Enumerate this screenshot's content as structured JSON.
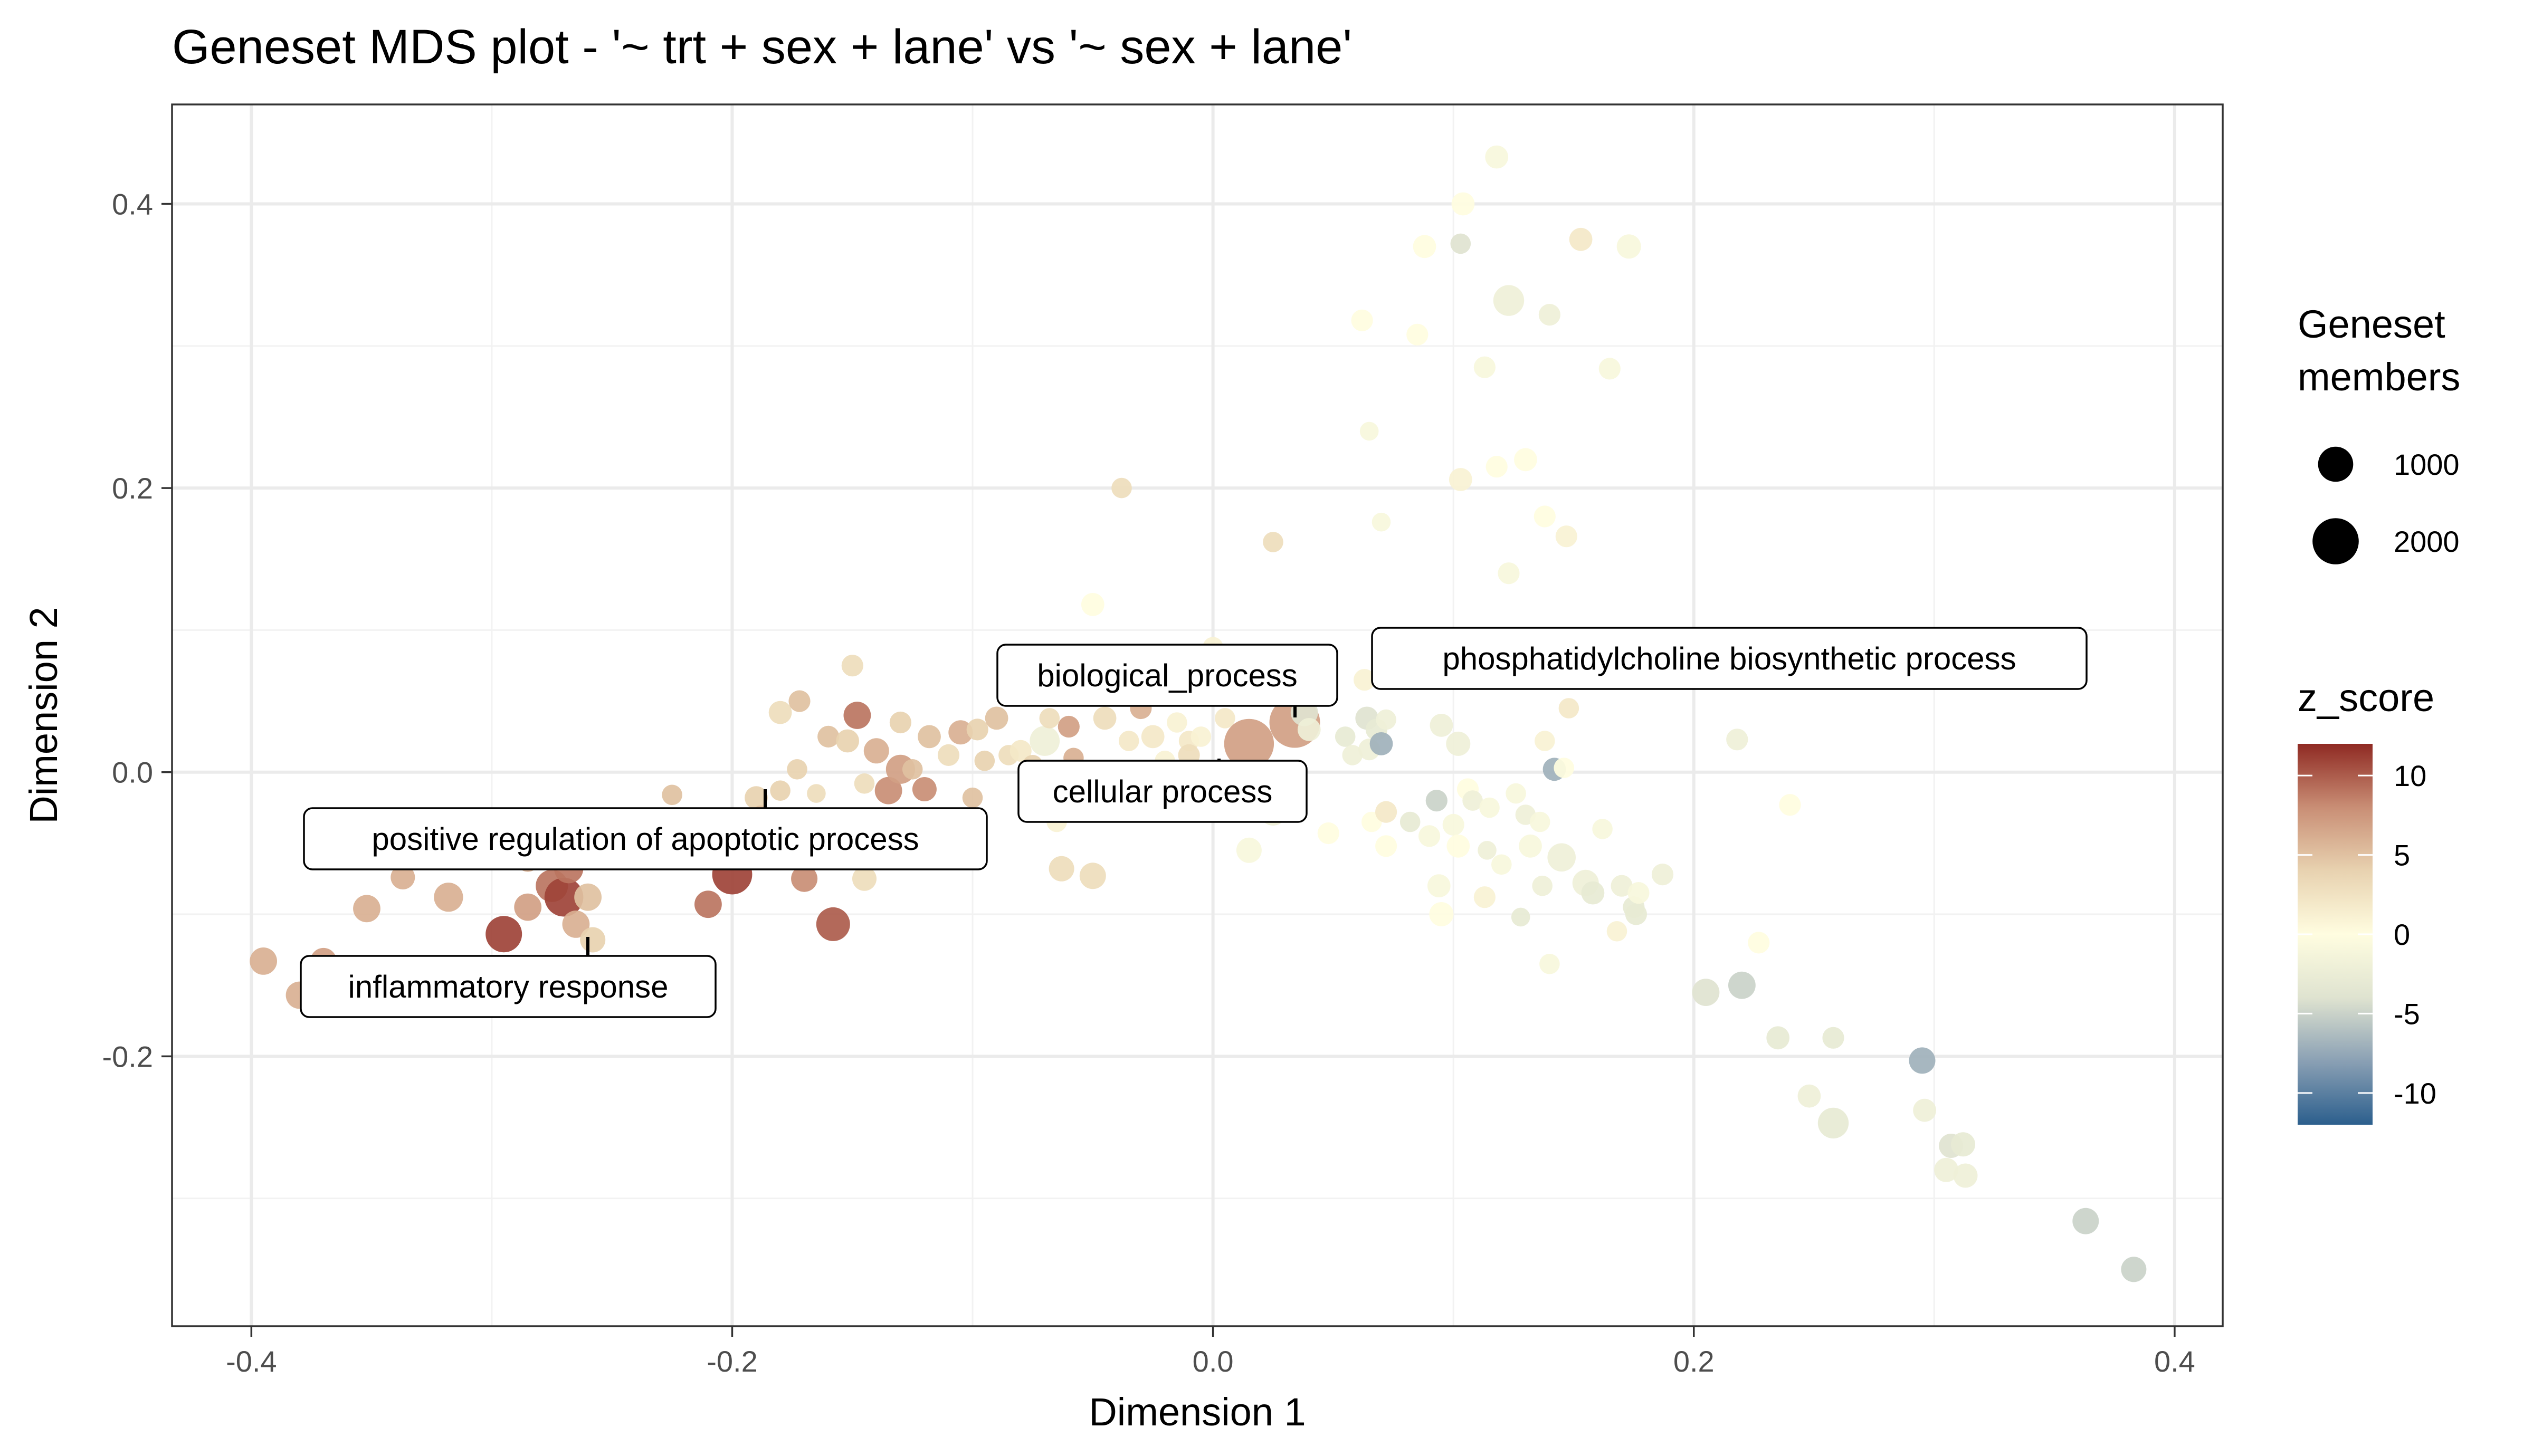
{
  "chart_data": {
    "type": "scatter",
    "title": "Geneset MDS plot - '~ trt + sex + lane' vs '~ sex + lane'",
    "xlabel": "Dimension 1",
    "ylabel": "Dimension 2",
    "xlim": [
      -0.433,
      0.42
    ],
    "ylim": [
      -0.39,
      0.47
    ],
    "xticks": [
      -0.4,
      -0.2,
      0.0,
      0.2,
      0.4
    ],
    "xtick_labels": [
      "-0.4",
      "-0.2",
      "0.0",
      "0.2",
      "0.4"
    ],
    "yticks": [
      -0.2,
      0.0,
      0.2,
      0.4
    ],
    "ytick_labels": [
      "-0.2",
      "0.0",
      "0.2",
      "0.4"
    ],
    "grid": true,
    "legend_position": "right",
    "size_legend": {
      "title": [
        "Geneset",
        "members"
      ],
      "entries": [
        {
          "label": "1000",
          "value": 1000
        },
        {
          "label": "2000",
          "value": 2000
        }
      ]
    },
    "color_legend": {
      "title": "z_score",
      "range": [
        -12,
        12
      ],
      "ticks": [
        10,
        5,
        0,
        -5,
        -10
      ],
      "tick_labels": [
        "10",
        "5",
        "0",
        "-5",
        "-10"
      ],
      "colors": [
        "#2c5f8d",
        "#8aa0b4",
        "#dfe3d0",
        "#fffde0",
        "#e8d2b0",
        "#c98e75",
        "#8f2a23"
      ]
    },
    "annotations": [
      {
        "label": "biological_process",
        "x": 0.034,
        "y": 0.035
      },
      {
        "label": "phosphatidylcholine biosynthetic process",
        "x": 0.148,
        "y": 0.045
      },
      {
        "label": "cellular process",
        "x": 0.015,
        "y": 0.02
      },
      {
        "label": "positive regulation of apoptotic process",
        "x": -0.2,
        "y": -0.072
      },
      {
        "label": "inflammatory response",
        "x": -0.27,
        "y": -0.088
      }
    ],
    "points": [
      {
        "x": -0.395,
        "y": -0.133,
        "members": 500,
        "z": 6
      },
      {
        "x": -0.38,
        "y": -0.157,
        "members": 500,
        "z": 6
      },
      {
        "x": -0.37,
        "y": -0.133,
        "members": 450,
        "z": 7
      },
      {
        "x": -0.352,
        "y": -0.096,
        "members": 500,
        "z": 6
      },
      {
        "x": -0.337,
        "y": -0.074,
        "members": 350,
        "z": 6
      },
      {
        "x": -0.318,
        "y": -0.088,
        "members": 600,
        "z": 6
      },
      {
        "x": -0.295,
        "y": -0.114,
        "members": 1100,
        "z": 11
      },
      {
        "x": -0.295,
        "y": -0.048,
        "members": 350,
        "z": 7
      },
      {
        "x": -0.285,
        "y": -0.095,
        "members": 500,
        "z": 7
      },
      {
        "x": -0.285,
        "y": -0.062,
        "members": 300,
        "z": 6
      },
      {
        "x": -0.275,
        "y": -0.08,
        "members": 800,
        "z": 9
      },
      {
        "x": -0.27,
        "y": -0.088,
        "members": 1300,
        "z": 11
      },
      {
        "x": -0.268,
        "y": -0.068,
        "members": 600,
        "z": 9
      },
      {
        "x": -0.265,
        "y": -0.107,
        "members": 500,
        "z": 6
      },
      {
        "x": -0.26,
        "y": -0.088,
        "members": 500,
        "z": 5
      },
      {
        "x": -0.258,
        "y": -0.118,
        "members": 400,
        "z": 4
      },
      {
        "x": -0.25,
        "y": -0.058,
        "members": 300,
        "z": 6
      },
      {
        "x": -0.225,
        "y": -0.016,
        "members": 200,
        "z": 5
      },
      {
        "x": -0.21,
        "y": -0.093,
        "members": 500,
        "z": 9
      },
      {
        "x": -0.2,
        "y": -0.072,
        "members": 1400,
        "z": 11
      },
      {
        "x": -0.19,
        "y": -0.018,
        "members": 300,
        "z": 4
      },
      {
        "x": -0.188,
        "y": -0.03,
        "members": 150,
        "z": 5
      },
      {
        "x": -0.18,
        "y": -0.013,
        "members": 200,
        "z": 4
      },
      {
        "x": -0.18,
        "y": 0.042,
        "members": 300,
        "z": 3
      },
      {
        "x": -0.172,
        "y": 0.05,
        "members": 250,
        "z": 5
      },
      {
        "x": -0.17,
        "y": -0.075,
        "members": 450,
        "z": 8
      },
      {
        "x": -0.173,
        "y": 0.002,
        "members": 200,
        "z": 4
      },
      {
        "x": -0.165,
        "y": -0.015,
        "members": 150,
        "z": 3
      },
      {
        "x": -0.16,
        "y": 0.025,
        "members": 250,
        "z": 5
      },
      {
        "x": -0.158,
        "y": -0.107,
        "members": 900,
        "z": 10
      },
      {
        "x": -0.152,
        "y": 0.022,
        "members": 300,
        "z": 4
      },
      {
        "x": -0.15,
        "y": 0.075,
        "members": 250,
        "z": 3
      },
      {
        "x": -0.148,
        "y": 0.04,
        "members": 500,
        "z": 9
      },
      {
        "x": -0.145,
        "y": -0.008,
        "members": 200,
        "z": 3
      },
      {
        "x": -0.145,
        "y": -0.075,
        "members": 350,
        "z": 3
      },
      {
        "x": -0.14,
        "y": 0.015,
        "members": 400,
        "z": 6
      },
      {
        "x": -0.135,
        "y": -0.013,
        "members": 500,
        "z": 8
      },
      {
        "x": -0.13,
        "y": 0.035,
        "members": 250,
        "z": 4
      },
      {
        "x": -0.13,
        "y": 0.002,
        "members": 600,
        "z": 7
      },
      {
        "x": -0.125,
        "y": 0.002,
        "members": 200,
        "z": 5
      },
      {
        "x": -0.12,
        "y": -0.012,
        "members": 350,
        "z": 8
      },
      {
        "x": -0.118,
        "y": 0.025,
        "members": 300,
        "z": 5
      },
      {
        "x": -0.11,
        "y": 0.012,
        "members": 250,
        "z": 3
      },
      {
        "x": -0.11,
        "y": -0.04,
        "members": 200,
        "z": 4
      },
      {
        "x": -0.105,
        "y": 0.028,
        "members": 350,
        "z": 6
      },
      {
        "x": -0.1,
        "y": -0.018,
        "members": 200,
        "z": 5
      },
      {
        "x": -0.098,
        "y": 0.03,
        "members": 250,
        "z": 4
      },
      {
        "x": -0.095,
        "y": 0.008,
        "members": 200,
        "z": 4
      },
      {
        "x": -0.09,
        "y": 0.038,
        "members": 300,
        "z": 5
      },
      {
        "x": -0.085,
        "y": 0.012,
        "members": 200,
        "z": 3
      },
      {
        "x": -0.08,
        "y": 0.015,
        "members": 250,
        "z": 2
      },
      {
        "x": -0.075,
        "y": 0.005,
        "members": 200,
        "z": 4
      },
      {
        "x": -0.07,
        "y": 0.022,
        "members": 650,
        "z": -2
      },
      {
        "x": -0.068,
        "y": 0.038,
        "members": 200,
        "z": 3
      },
      {
        "x": -0.065,
        "y": -0.035,
        "members": 200,
        "z": 1
      },
      {
        "x": -0.063,
        "y": -0.068,
        "members": 400,
        "z": 3
      },
      {
        "x": -0.06,
        "y": 0.032,
        "members": 250,
        "z": 7
      },
      {
        "x": -0.058,
        "y": 0.01,
        "members": 200,
        "z": 6
      },
      {
        "x": -0.05,
        "y": 0.118,
        "members": 300,
        "z": 0
      },
      {
        "x": -0.05,
        "y": -0.073,
        "members": 450,
        "z": 3
      },
      {
        "x": -0.045,
        "y": 0.038,
        "members": 300,
        "z": 3
      },
      {
        "x": -0.038,
        "y": 0.2,
        "members": 200,
        "z": 3
      },
      {
        "x": -0.035,
        "y": 0.022,
        "members": 200,
        "z": 2
      },
      {
        "x": -0.03,
        "y": 0.045,
        "members": 250,
        "z": 6
      },
      {
        "x": -0.025,
        "y": 0.025,
        "members": 300,
        "z": 2
      },
      {
        "x": -0.02,
        "y": 0.008,
        "members": 200,
        "z": 1
      },
      {
        "x": -0.015,
        "y": 0.035,
        "members": 200,
        "z": 1
      },
      {
        "x": -0.01,
        "y": 0.022,
        "members": 200,
        "z": 2
      },
      {
        "x": -0.01,
        "y": 0.012,
        "members": 250,
        "z": 3
      },
      {
        "x": -0.005,
        "y": 0.025,
        "members": 200,
        "z": 1
      },
      {
        "x": 0.0,
        "y": 0.088,
        "members": 200,
        "z": 1
      },
      {
        "x": 0.005,
        "y": 0.038,
        "members": 200,
        "z": 2
      },
      {
        "x": 0.015,
        "y": -0.055,
        "members": 400,
        "z": -1
      },
      {
        "x": 0.015,
        "y": 0.02,
        "members": 2400,
        "z": 7
      },
      {
        "x": 0.025,
        "y": 0.162,
        "members": 200,
        "z": 3
      },
      {
        "x": 0.025,
        "y": -0.028,
        "members": 500,
        "z": -2
      },
      {
        "x": 0.034,
        "y": 0.035,
        "members": 2500,
        "z": 7
      },
      {
        "x": 0.038,
        "y": 0.042,
        "members": 500,
        "z": -4
      },
      {
        "x": 0.04,
        "y": 0.03,
        "members": 300,
        "z": -2
      },
      {
        "x": 0.048,
        "y": -0.043,
        "members": 250,
        "z": 0
      },
      {
        "x": 0.055,
        "y": 0.025,
        "members": 200,
        "z": -3
      },
      {
        "x": 0.058,
        "y": 0.012,
        "members": 200,
        "z": -2
      },
      {
        "x": 0.062,
        "y": 0.318,
        "members": 250,
        "z": 0
      },
      {
        "x": 0.063,
        "y": 0.065,
        "members": 250,
        "z": 1
      },
      {
        "x": 0.064,
        "y": 0.038,
        "members": 300,
        "z": -4
      },
      {
        "x": 0.065,
        "y": 0.016,
        "members": 250,
        "z": -2
      },
      {
        "x": 0.065,
        "y": 0.24,
        "members": 150,
        "z": -1
      },
      {
        "x": 0.066,
        "y": -0.035,
        "members": 200,
        "z": 0
      },
      {
        "x": 0.068,
        "y": 0.03,
        "members": 250,
        "z": -3
      },
      {
        "x": 0.07,
        "y": 0.176,
        "members": 150,
        "z": -1
      },
      {
        "x": 0.07,
        "y": 0.02,
        "members": 300,
        "z": -7
      },
      {
        "x": 0.072,
        "y": 0.037,
        "members": 200,
        "z": -2
      },
      {
        "x": 0.072,
        "y": -0.028,
        "members": 250,
        "z": 2
      },
      {
        "x": 0.072,
        "y": -0.052,
        "members": 250,
        "z": 0
      },
      {
        "x": 0.082,
        "y": -0.035,
        "members": 200,
        "z": -3
      },
      {
        "x": 0.085,
        "y": 0.308,
        "members": 250,
        "z": 0
      },
      {
        "x": 0.088,
        "y": 0.37,
        "members": 300,
        "z": 0
      },
      {
        "x": 0.09,
        "y": -0.045,
        "members": 250,
        "z": -1
      },
      {
        "x": 0.093,
        "y": -0.02,
        "members": 250,
        "z": -5
      },
      {
        "x": 0.094,
        "y": -0.08,
        "members": 300,
        "z": -1
      },
      {
        "x": 0.095,
        "y": -0.1,
        "members": 350,
        "z": 0
      },
      {
        "x": 0.095,
        "y": 0.033,
        "members": 300,
        "z": -2
      },
      {
        "x": 0.1,
        "y": -0.037,
        "members": 250,
        "z": -1
      },
      {
        "x": 0.102,
        "y": 0.02,
        "members": 350,
        "z": -2
      },
      {
        "x": 0.102,
        "y": -0.052,
        "members": 300,
        "z": 0
      },
      {
        "x": 0.103,
        "y": 0.372,
        "members": 200,
        "z": -4
      },
      {
        "x": 0.103,
        "y": 0.206,
        "members": 300,
        "z": 1
      },
      {
        "x": 0.104,
        "y": 0.4,
        "members": 300,
        "z": 0
      },
      {
        "x": 0.106,
        "y": -0.012,
        "members": 250,
        "z": 0
      },
      {
        "x": 0.108,
        "y": -0.02,
        "members": 200,
        "z": -2
      },
      {
        "x": 0.113,
        "y": 0.285,
        "members": 250,
        "z": -1
      },
      {
        "x": 0.113,
        "y": -0.088,
        "members": 250,
        "z": 1
      },
      {
        "x": 0.114,
        "y": -0.055,
        "members": 150,
        "z": -2
      },
      {
        "x": 0.115,
        "y": -0.025,
        "members": 200,
        "z": -1
      },
      {
        "x": 0.118,
        "y": 0.433,
        "members": 300,
        "z": -1
      },
      {
        "x": 0.118,
        "y": 0.215,
        "members": 250,
        "z": 0
      },
      {
        "x": 0.12,
        "y": -0.065,
        "members": 200,
        "z": -1
      },
      {
        "x": 0.123,
        "y": 0.14,
        "members": 250,
        "z": -1
      },
      {
        "x": 0.123,
        "y": 0.332,
        "members": 700,
        "z": -2
      },
      {
        "x": 0.126,
        "y": -0.015,
        "members": 200,
        "z": -1
      },
      {
        "x": 0.128,
        "y": -0.102,
        "members": 150,
        "z": -3
      },
      {
        "x": 0.13,
        "y": -0.03,
        "members": 200,
        "z": -2
      },
      {
        "x": 0.13,
        "y": 0.22,
        "members": 300,
        "z": 0
      },
      {
        "x": 0.132,
        "y": -0.052,
        "members": 300,
        "z": -1
      },
      {
        "x": 0.136,
        "y": -0.035,
        "members": 200,
        "z": -1
      },
      {
        "x": 0.137,
        "y": -0.08,
        "members": 200,
        "z": -2
      },
      {
        "x": 0.138,
        "y": 0.18,
        "members": 250,
        "z": 0
      },
      {
        "x": 0.138,
        "y": 0.022,
        "members": 200,
        "z": 1
      },
      {
        "x": 0.14,
        "y": 0.322,
        "members": 250,
        "z": -2
      },
      {
        "x": 0.14,
        "y": -0.135,
        "members": 200,
        "z": -1
      },
      {
        "x": 0.142,
        "y": 0.002,
        "members": 300,
        "z": -7
      },
      {
        "x": 0.145,
        "y": -0.06,
        "members": 550,
        "z": -2
      },
      {
        "x": 0.146,
        "y": 0.003,
        "members": 200,
        "z": 0
      },
      {
        "x": 0.147,
        "y": 0.166,
        "members": 250,
        "z": 1
      },
      {
        "x": 0.148,
        "y": 0.045,
        "members": 200,
        "z": 2
      },
      {
        "x": 0.153,
        "y": 0.375,
        "members": 300,
        "z": 2
      },
      {
        "x": 0.155,
        "y": -0.078,
        "members": 450,
        "z": -2
      },
      {
        "x": 0.158,
        "y": -0.085,
        "members": 300,
        "z": -3
      },
      {
        "x": 0.162,
        "y": -0.04,
        "members": 200,
        "z": -1
      },
      {
        "x": 0.165,
        "y": 0.284,
        "members": 250,
        "z": -1
      },
      {
        "x": 0.168,
        "y": -0.112,
        "members": 200,
        "z": 1
      },
      {
        "x": 0.17,
        "y": -0.08,
        "members": 250,
        "z": -2
      },
      {
        "x": 0.173,
        "y": 0.37,
        "members": 350,
        "z": -1
      },
      {
        "x": 0.175,
        "y": -0.095,
        "members": 250,
        "z": -3
      },
      {
        "x": 0.176,
        "y": -0.1,
        "members": 250,
        "z": -3
      },
      {
        "x": 0.177,
        "y": -0.085,
        "members": 250,
        "z": -1
      },
      {
        "x": 0.187,
        "y": -0.072,
        "members": 250,
        "z": -2
      },
      {
        "x": 0.205,
        "y": -0.155,
        "members": 500,
        "z": -4
      },
      {
        "x": 0.218,
        "y": 0.023,
        "members": 250,
        "z": -2
      },
      {
        "x": 0.22,
        "y": -0.15,
        "members": 500,
        "z": -5
      },
      {
        "x": 0.227,
        "y": -0.12,
        "members": 250,
        "z": 0
      },
      {
        "x": 0.235,
        "y": -0.187,
        "members": 300,
        "z": -3
      },
      {
        "x": 0.24,
        "y": -0.023,
        "members": 250,
        "z": 0
      },
      {
        "x": 0.248,
        "y": -0.228,
        "members": 300,
        "z": -2
      },
      {
        "x": 0.258,
        "y": -0.247,
        "members": 700,
        "z": -3
      },
      {
        "x": 0.258,
        "y": -0.187,
        "members": 250,
        "z": -3
      },
      {
        "x": 0.295,
        "y": -0.203,
        "members": 450,
        "z": -7
      },
      {
        "x": 0.296,
        "y": -0.238,
        "members": 300,
        "z": -2
      },
      {
        "x": 0.305,
        "y": -0.28,
        "members": 350,
        "z": -2
      },
      {
        "x": 0.307,
        "y": -0.263,
        "members": 350,
        "z": -4
      },
      {
        "x": 0.312,
        "y": -0.262,
        "members": 350,
        "z": -3
      },
      {
        "x": 0.313,
        "y": -0.284,
        "members": 350,
        "z": -2
      },
      {
        "x": 0.363,
        "y": -0.316,
        "members": 450,
        "z": -5
      },
      {
        "x": 0.383,
        "y": -0.35,
        "members": 400,
        "z": -5
      }
    ]
  }
}
